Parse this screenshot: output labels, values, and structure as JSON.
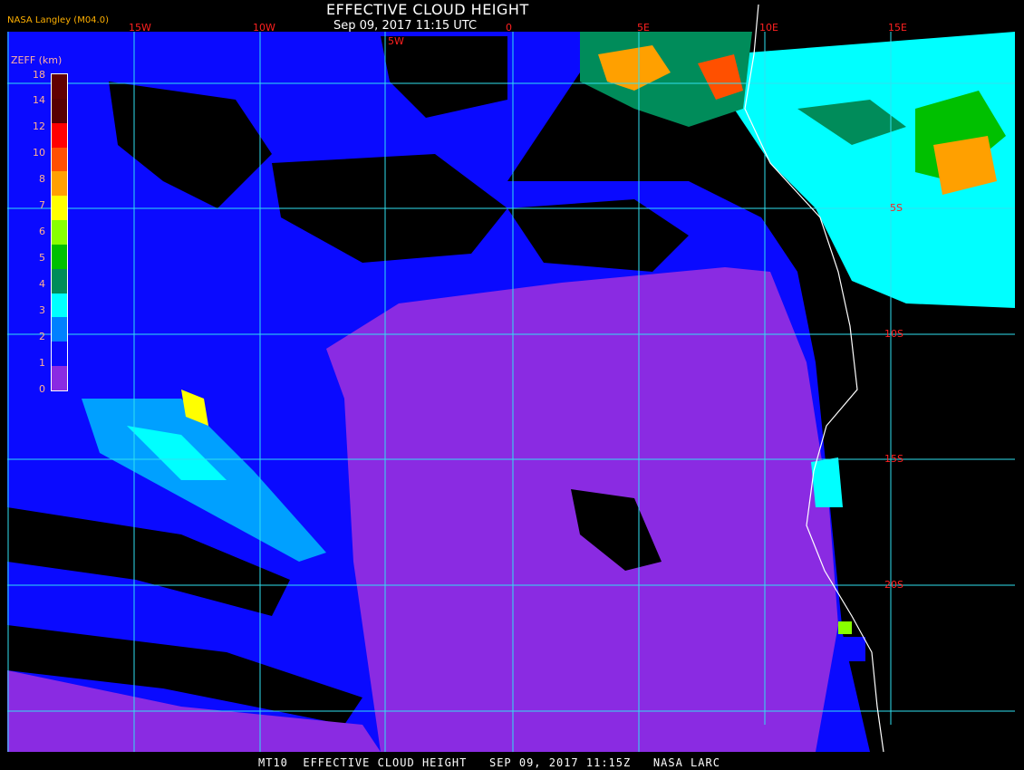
{
  "header": {
    "title": "EFFECTIVE CLOUD HEIGHT",
    "subtitle": "Sep 09, 2017 11:15 UTC",
    "credit": "NASA Langley (M04.0)"
  },
  "footer": "MT10  EFFECTIVE CLOUD HEIGHT   SEP 09, 2017 11:15Z   NASA LARC",
  "longitude_labels": [
    "15W",
    "10W",
    "5W",
    "0",
    "5E",
    "10E",
    "15E"
  ],
  "latitude_labels": [
    "5S",
    "10S",
    "15S",
    "20S"
  ],
  "legend": {
    "title": "ZEFF (km)",
    "ticks": [
      "18",
      "14",
      "12",
      "10",
      "8",
      "7",
      "6",
      "5",
      "4",
      "3",
      "2",
      "1",
      "0"
    ],
    "bands_top_to_bottom": [
      {
        "range": "16-18",
        "color": "#600000"
      },
      {
        "range": "14-16",
        "color": "#560000"
      },
      {
        "range": "12-14",
        "color": "#ff0000"
      },
      {
        "range": "10-12",
        "color": "#ff5000"
      },
      {
        "range": "8-10",
        "color": "#ffa000"
      },
      {
        "range": "7-8",
        "color": "#ffff00"
      },
      {
        "range": "6-7",
        "color": "#88ff00"
      },
      {
        "range": "5-6",
        "color": "#00c000"
      },
      {
        "range": "4-5",
        "color": "#008c5a"
      },
      {
        "range": "3-4",
        "color": "#00ffff"
      },
      {
        "range": "2-3",
        "color": "#0080ff"
      },
      {
        "range": "1-2",
        "color": "#0a0aff"
      },
      {
        "range": "0-1",
        "color": "#8a2be2"
      }
    ]
  },
  "colors": {
    "grid": "#30e0f0",
    "coastline": "#ffffff",
    "label": "#ff2020"
  }
}
